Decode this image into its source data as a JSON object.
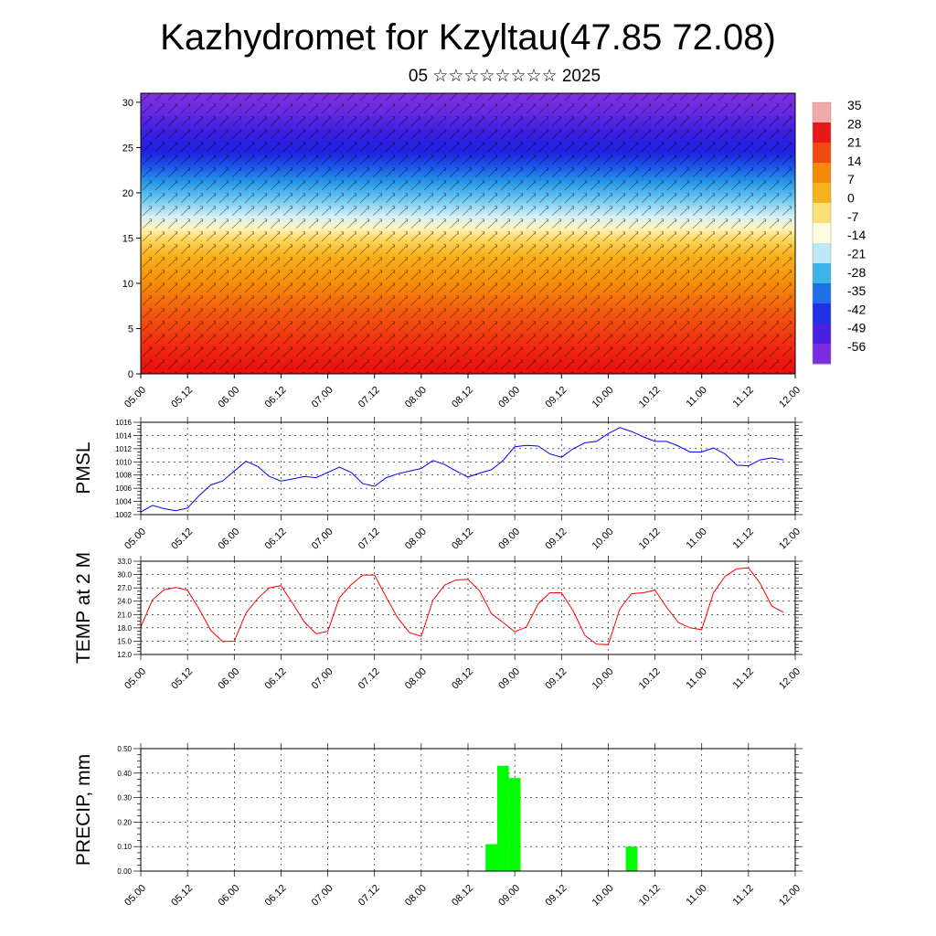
{
  "title": "Kazhydromet for Kzyltau(47.85 72.08)",
  "subtitle": "05 ☆☆☆☆☆☆☆☆ 2025",
  "chart_data": [
    {
      "type": "heatmap",
      "description_kind": "vertical cross-section temperature with wind barbs",
      "yticks": [
        "0",
        "5",
        "10",
        "15",
        "20",
        "25",
        "30"
      ],
      "ylim": [
        0,
        31
      ],
      "xticks": [
        "05.00",
        "05.12",
        "06.00",
        "06.12",
        "07.00",
        "07.12",
        "08.00",
        "08.12",
        "09.00",
        "09.12",
        "10.00",
        "10.12",
        "11.00",
        "11.12",
        "12.00"
      ],
      "colorbar_labels": [
        "35",
        "28",
        "21",
        "14",
        "7",
        "0",
        "-7",
        "-14",
        "-21",
        "-28",
        "-35",
        "-42",
        "-49",
        "-56"
      ],
      "colors": [
        "#f2a8a8",
        "#e81818",
        "#f04a10",
        "#f58a0a",
        "#f7b21a",
        "#fbe07a",
        "#fffde0",
        "#bfe8f5",
        "#3cb4ea",
        "#1e6fe6",
        "#2030e6",
        "#4a1fe0",
        "#7a2ce0"
      ]
    },
    {
      "type": "line",
      "ylabel": "PMSL",
      "color": "#0000ff",
      "ylim": [
        1002,
        1016
      ],
      "yticks": [
        "1002",
        "1004",
        "1006",
        "1008",
        "1010",
        "1012",
        "1014",
        "1016"
      ],
      "xticks": [
        "05.00",
        "05.12",
        "06.00",
        "06.12",
        "07.00",
        "07.12",
        "08.00",
        "08.12",
        "09.00",
        "09.12",
        "10.00",
        "10.12",
        "11.00",
        "11.12",
        "12.00"
      ],
      "x_hours": [
        0,
        3,
        6,
        9,
        12,
        15,
        18,
        21,
        24,
        27,
        30,
        33,
        36,
        39,
        42,
        45,
        48,
        51,
        54,
        57,
        60,
        63,
        66,
        69,
        72,
        75,
        78,
        81,
        84,
        87,
        90,
        93,
        96,
        99,
        102,
        105,
        108,
        111,
        114,
        117,
        120,
        123,
        126,
        129,
        132,
        135,
        138,
        141,
        144,
        147,
        150,
        153,
        156,
        159,
        162,
        165
      ],
      "values": [
        1002.4,
        1003.4,
        1002.9,
        1002.6,
        1003.0,
        1004.9,
        1006.5,
        1007.1,
        1008.6,
        1010.1,
        1009.3,
        1007.8,
        1007.1,
        1007.4,
        1007.8,
        1007.6,
        1008.4,
        1009.2,
        1008.4,
        1006.7,
        1006.3,
        1007.6,
        1008.2,
        1008.6,
        1009.0,
        1010.2,
        1009.6,
        1008.6,
        1007.7,
        1008.3,
        1008.8,
        1010.2,
        1012.3,
        1012.5,
        1012.4,
        1011.2,
        1010.7,
        1012.0,
        1012.9,
        1013.1,
        1014.3,
        1015.2,
        1014.6,
        1013.8,
        1013.1,
        1013.1,
        1012.4,
        1011.5,
        1011.5,
        1012.1,
        1011.2,
        1009.5,
        1009.4,
        1010.3,
        1010.6,
        1010.3
      ]
    },
    {
      "type": "line",
      "ylabel": "TEMP at 2 M",
      "color": "#ff0000",
      "ylim": [
        12,
        33
      ],
      "yticks": [
        "12.0",
        "15.0",
        "18.0",
        "21.0",
        "24.0",
        "27.0",
        "30.0",
        "33.0"
      ],
      "xticks": [
        "05.00",
        "05.12",
        "06.00",
        "06.12",
        "07.00",
        "07.12",
        "08.00",
        "08.12",
        "09.00",
        "09.12",
        "10.00",
        "10.12",
        "11.00",
        "11.12",
        "12.00"
      ],
      "x_hours": [
        0,
        3,
        6,
        9,
        12,
        15,
        18,
        21,
        24,
        27,
        30,
        33,
        36,
        39,
        42,
        45,
        48,
        51,
        54,
        57,
        60,
        63,
        66,
        69,
        72,
        75,
        78,
        81,
        84,
        87,
        90,
        93,
        96,
        99,
        102,
        105,
        108,
        111,
        114,
        117,
        120,
        123,
        126,
        129,
        132,
        135,
        138,
        141,
        144,
        147,
        150,
        153,
        156,
        159,
        162,
        165
      ],
      "values": [
        18.2,
        24.3,
        26.6,
        27.1,
        26.5,
        22.2,
        17.4,
        14.9,
        15.0,
        21.3,
        24.6,
        27.0,
        27.5,
        23.5,
        19.3,
        16.7,
        17.2,
        24.8,
        27.7,
        29.9,
        29.9,
        24.9,
        20.2,
        16.9,
        16.1,
        24.2,
        27.6,
        28.8,
        28.9,
        26.3,
        21.2,
        19.2,
        17.1,
        18.2,
        23.4,
        25.9,
        25.9,
        21.8,
        16.3,
        14.3,
        14.2,
        22.3,
        25.7,
        25.9,
        26.5,
        22.6,
        19.2,
        18.0,
        17.6,
        25.9,
        29.6,
        31.3,
        31.5,
        28.0,
        22.9,
        21.5
      ]
    },
    {
      "type": "bar",
      "ylabel": "PRECIP, mm",
      "color": "#00ff00",
      "ylim": [
        0,
        0.5
      ],
      "yticks": [
        "0.00",
        "0.10",
        "0.20",
        "0.30",
        "0.40",
        "0.50"
      ],
      "xticks": [
        "05.00",
        "05.12",
        "06.00",
        "06.12",
        "07.00",
        "07.12",
        "08.00",
        "08.12",
        "09.00",
        "09.12",
        "10.00",
        "10.12",
        "11.00",
        "11.12",
        "12.00"
      ],
      "bars_x_hours": [
        90,
        93,
        96,
        126
      ],
      "bars_values": [
        0.11,
        0.43,
        0.38,
        0.1
      ]
    }
  ]
}
